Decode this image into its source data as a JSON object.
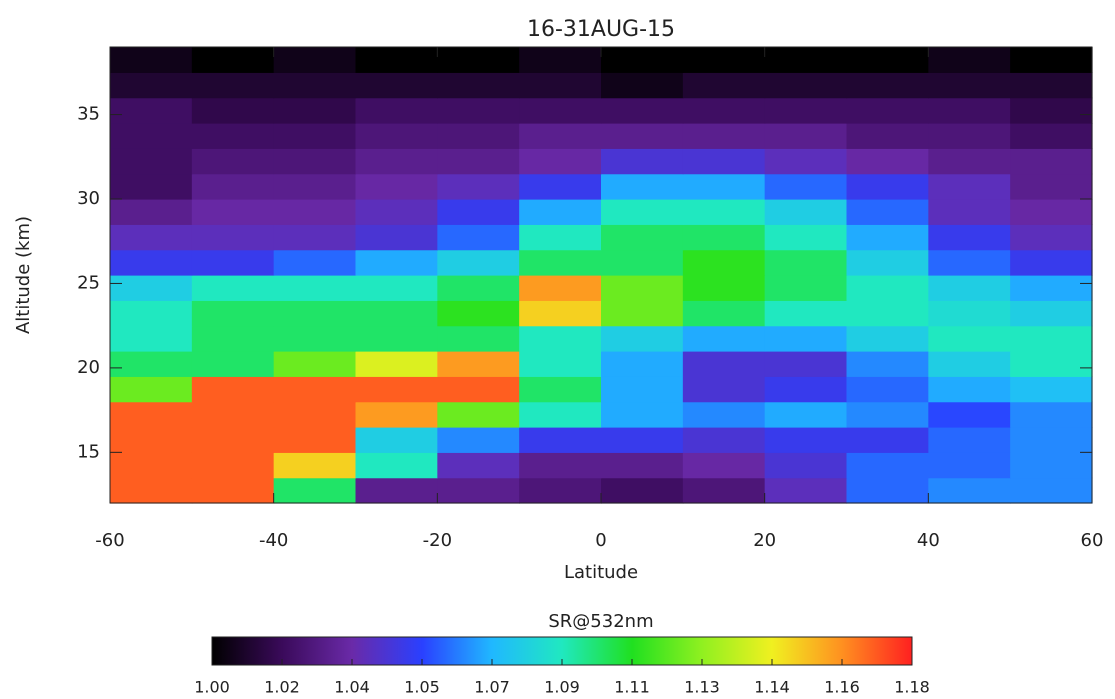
{
  "chart_data": {
    "type": "heatmap",
    "title": "16-31AUG-15",
    "xlabel": "Latitude",
    "ylabel": "Altitude (km)",
    "xlim": [
      -60,
      60
    ],
    "ylim": [
      12,
      39
    ],
    "xticks": [
      -60,
      -40,
      -20,
      0,
      20,
      40,
      60
    ],
    "yticks": [
      15,
      20,
      25,
      30,
      35
    ],
    "x": [
      -55,
      -45,
      -35,
      -25,
      -15,
      -5,
      5,
      15,
      25,
      35,
      45,
      55
    ],
    "y": [
      12.75,
      14.25,
      15.75,
      17.25,
      18.75,
      20.25,
      21.75,
      23.25,
      24.75,
      26.25,
      27.75,
      29.25,
      30.75,
      32.25,
      33.75,
      35.25,
      36.75,
      38.25
    ],
    "z": [
      [
        1.17,
        1.17,
        1.1,
        1.03,
        1.03,
        1.025,
        1.02,
        1.025,
        1.04,
        1.06,
        1.065,
        1.065
      ],
      [
        1.17,
        1.17,
        1.15,
        1.09,
        1.04,
        1.03,
        1.03,
        1.035,
        1.045,
        1.06,
        1.06,
        1.065
      ],
      [
        1.17,
        1.17,
        1.17,
        1.08,
        1.065,
        1.05,
        1.05,
        1.045,
        1.05,
        1.05,
        1.06,
        1.065
      ],
      [
        1.17,
        1.17,
        1.17,
        1.16,
        1.12,
        1.09,
        1.07,
        1.065,
        1.07,
        1.065,
        1.055,
        1.065
      ],
      [
        1.12,
        1.17,
        1.17,
        1.17,
        1.17,
        1.1,
        1.07,
        1.045,
        1.05,
        1.06,
        1.07,
        1.075
      ],
      [
        1.1,
        1.1,
        1.12,
        1.14,
        1.16,
        1.09,
        1.07,
        1.045,
        1.045,
        1.065,
        1.08,
        1.09
      ],
      [
        1.09,
        1.1,
        1.1,
        1.1,
        1.1,
        1.09,
        1.08,
        1.07,
        1.07,
        1.08,
        1.09,
        1.09
      ],
      [
        1.09,
        1.1,
        1.1,
        1.1,
        1.11,
        1.15,
        1.12,
        1.1,
        1.09,
        1.09,
        1.085,
        1.08
      ],
      [
        1.08,
        1.09,
        1.09,
        1.09,
        1.1,
        1.16,
        1.12,
        1.11,
        1.1,
        1.09,
        1.08,
        1.07
      ],
      [
        1.05,
        1.05,
        1.06,
        1.07,
        1.08,
        1.1,
        1.1,
        1.11,
        1.1,
        1.08,
        1.06,
        1.05
      ],
      [
        1.04,
        1.04,
        1.04,
        1.045,
        1.06,
        1.09,
        1.1,
        1.1,
        1.09,
        1.07,
        1.05,
        1.04
      ],
      [
        1.03,
        1.035,
        1.035,
        1.04,
        1.05,
        1.07,
        1.09,
        1.09,
        1.08,
        1.06,
        1.04,
        1.035
      ],
      [
        1.02,
        1.03,
        1.03,
        1.035,
        1.04,
        1.05,
        1.07,
        1.07,
        1.06,
        1.05,
        1.04,
        1.03
      ],
      [
        1.02,
        1.025,
        1.025,
        1.03,
        1.03,
        1.035,
        1.045,
        1.045,
        1.04,
        1.035,
        1.03,
        1.03
      ],
      [
        1.02,
        1.02,
        1.02,
        1.025,
        1.025,
        1.03,
        1.03,
        1.03,
        1.03,
        1.025,
        1.025,
        1.02
      ],
      [
        1.02,
        1.015,
        1.015,
        1.02,
        1.02,
        1.02,
        1.02,
        1.02,
        1.02,
        1.02,
        1.02,
        1.015
      ],
      [
        1.01,
        1.01,
        1.01,
        1.01,
        1.01,
        1.01,
        1.005,
        1.01,
        1.01,
        1.01,
        1.01,
        1.01
      ],
      [
        1.005,
        1.0,
        1.005,
        1.0,
        1.0,
        1.005,
        1.0,
        1.0,
        1.0,
        1.0,
        1.005,
        1.0
      ]
    ],
    "colorbar_label": "SR@532nm",
    "zlim": [
      1.0,
      1.18
    ],
    "zticks": [
      {
        "value": 1.0,
        "label": "1.00"
      },
      {
        "value": 1.018,
        "label": "1.02"
      },
      {
        "value": 1.036,
        "label": "1.04"
      },
      {
        "value": 1.054,
        "label": "1.05"
      },
      {
        "value": 1.072,
        "label": "1.07"
      },
      {
        "value": 1.09,
        "label": "1.09"
      },
      {
        "value": 1.108,
        "label": "1.11"
      },
      {
        "value": 1.126,
        "label": "1.13"
      },
      {
        "value": 1.144,
        "label": "1.14"
      },
      {
        "value": 1.162,
        "label": "1.16"
      },
      {
        "value": 1.18,
        "label": "1.18"
      }
    ],
    "colormap": [
      "#000000",
      "#3a0a5a",
      "#6a2aa8",
      "#2a40ff",
      "#20b8ff",
      "#20e8c0",
      "#20e020",
      "#90f020",
      "#f0f020",
      "#ff9020",
      "#ff2020"
    ]
  }
}
